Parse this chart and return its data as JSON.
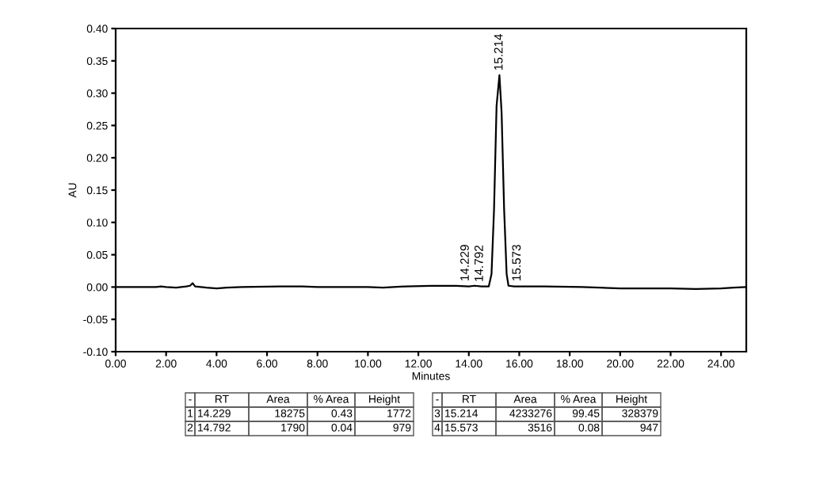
{
  "chart_data": {
    "type": "line",
    "xlabel": "Minutes",
    "ylabel": "AU",
    "x": [
      0,
      1.6,
      1.8,
      2.0,
      2.4,
      2.8,
      2.95,
      3.05,
      3.15,
      3.6,
      4.0,
      4.4,
      5,
      6.5,
      7.4,
      8,
      10,
      10.6,
      11.5,
      12.5,
      13.5,
      14.0,
      14.229,
      14.5,
      14.792,
      14.9,
      15.0,
      15.1,
      15.214,
      15.3,
      15.4,
      15.5,
      15.573,
      15.8,
      17,
      18.5,
      20,
      22,
      23,
      24,
      24.5,
      25
    ],
    "series": [
      {
        "color": "#000000",
        "values": [
          0,
          0,
          0.001,
          0,
          -0.001,
          0.001,
          0.002,
          0.006,
          0.001,
          -0.001,
          -0.002,
          -0.001,
          0,
          0.001,
          0.001,
          0,
          0,
          -0.001,
          0.001,
          0.002,
          0.002,
          0.001,
          0.002,
          0.001,
          0.001,
          0.02,
          0.12,
          0.28,
          0.328,
          0.27,
          0.12,
          0.02,
          0.002,
          0.001,
          0.001,
          0,
          -0.002,
          -0.002,
          -0.003,
          -0.002,
          -0.001,
          0
        ]
      }
    ],
    "xlim": [
      0,
      25
    ],
    "ylim": [
      -0.1,
      0.4
    ],
    "xticks": [
      {
        "value": 0,
        "label": "0.00"
      },
      {
        "value": 2,
        "label": "2.00"
      },
      {
        "value": 4,
        "label": "4.00"
      },
      {
        "value": 6,
        "label": "6.00"
      },
      {
        "value": 8,
        "label": "8.00"
      },
      {
        "value": 10,
        "label": "10.00"
      },
      {
        "value": 12,
        "label": "12.00"
      },
      {
        "value": 14,
        "label": "14.00"
      },
      {
        "value": 16,
        "label": "16.00"
      },
      {
        "value": 18,
        "label": "18.00"
      },
      {
        "value": 20,
        "label": "20.00"
      },
      {
        "value": 22,
        "label": "22.00"
      },
      {
        "value": 24,
        "label": "24.00"
      }
    ],
    "yticks": [
      {
        "value": -0.1,
        "label": "-0.10"
      },
      {
        "value": -0.05,
        "label": "-0.05"
      },
      {
        "value": 0,
        "label": "0.00"
      },
      {
        "value": 0.05,
        "label": "0.05"
      },
      {
        "value": 0.1,
        "label": "0.10"
      },
      {
        "value": 0.15,
        "label": "0.15"
      },
      {
        "value": 0.2,
        "label": "0.20"
      },
      {
        "value": 0.25,
        "label": "0.25"
      },
      {
        "value": 0.3,
        "label": "0.30"
      },
      {
        "value": 0.35,
        "label": "0.35"
      },
      {
        "value": 0.4,
        "label": "0.40"
      }
    ],
    "grid": false,
    "legend": false,
    "marker": "none",
    "line_style": "solid",
    "annotations": [
      {
        "text": "14.229",
        "x": 14.229,
        "y": 0.002
      },
      {
        "text": "14.792",
        "x": 14.792,
        "y": 0.001
      },
      {
        "text": "15.214",
        "x": 15.214,
        "y": 0.328
      },
      {
        "text": "15.573",
        "x": 15.573,
        "y": 0.002
      },
      "-",
      "RT",
      "Area",
      "% Area",
      "Height",
      "1",
      "14.229",
      "18275",
      "0.43",
      "1772",
      "2",
      "14.792",
      "1790",
      "0.04",
      "979",
      "-",
      "RT",
      "Area",
      "% Area",
      "Height",
      "3",
      "15.214",
      "4233276",
      "99.45",
      "328379",
      "4",
      "15.573",
      "3516",
      "0.08",
      "947"
    ]
  }
}
